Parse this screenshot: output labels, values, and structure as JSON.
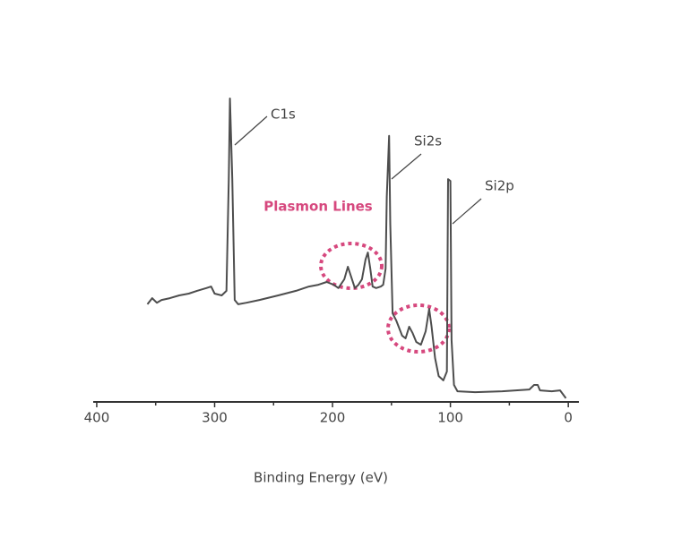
{
  "chart_data": {
    "type": "line",
    "x_label": "Binding Energy (eV)",
    "xlim": [
      403,
      -9
    ],
    "xticks": [
      400,
      300,
      200,
      100,
      0
    ],
    "xminorticks": [
      350,
      250,
      150,
      50
    ],
    "ylim": [
      0,
      105
    ],
    "color": "#4d4d4d",
    "x": [
      357,
      353,
      349,
      345,
      338,
      330,
      322,
      315,
      307,
      303,
      300,
      294,
      290,
      288,
      287,
      285,
      283,
      280,
      273,
      262,
      246,
      231,
      220,
      212,
      205,
      199,
      195,
      190,
      187,
      184,
      181,
      178,
      175,
      172,
      170,
      168,
      166,
      163,
      159,
      157,
      155,
      154,
      152,
      151,
      149,
      146,
      141,
      138,
      135,
      132,
      129,
      125,
      121,
      118,
      116,
      113,
      110,
      106,
      103,
      102,
      100,
      99,
      97,
      94,
      79,
      56,
      33,
      29,
      26,
      24,
      14,
      7,
      2
    ],
    "values": [
      32.1,
      34.1,
      32.6,
      33.5,
      34.1,
      35,
      35.6,
      36.5,
      37.4,
      37.9,
      35.6,
      35,
      36.5,
      73.2,
      99.7,
      73.2,
      33.5,
      32.1,
      32.6,
      33.5,
      35,
      36.5,
      37.9,
      38.5,
      39.4,
      38.5,
      37.4,
      40.3,
      44.4,
      40.9,
      37.4,
      38.5,
      40.3,
      46.8,
      49.1,
      43.8,
      37.9,
      37.4,
      37.9,
      38.5,
      43.8,
      67.4,
      87.4,
      58.5,
      29.1,
      26.8,
      21.8,
      20.9,
      24.7,
      22.6,
      19.7,
      18.8,
      23.2,
      30.6,
      24.7,
      14.4,
      8.5,
      7.1,
      10,
      73.2,
      72.6,
      20.3,
      5.6,
      3.5,
      3.2,
      3.5,
      4.1,
      5.6,
      5.6,
      3.8,
      3.5,
      3.8,
      1.2
    ],
    "annotations": [
      "C1s",
      "Si2s",
      "Si2p",
      "Plasmon Lines"
    ],
    "annotation_colors": [
      "#444444",
      "#444444",
      "#444444",
      "#d6487e"
    ]
  }
}
